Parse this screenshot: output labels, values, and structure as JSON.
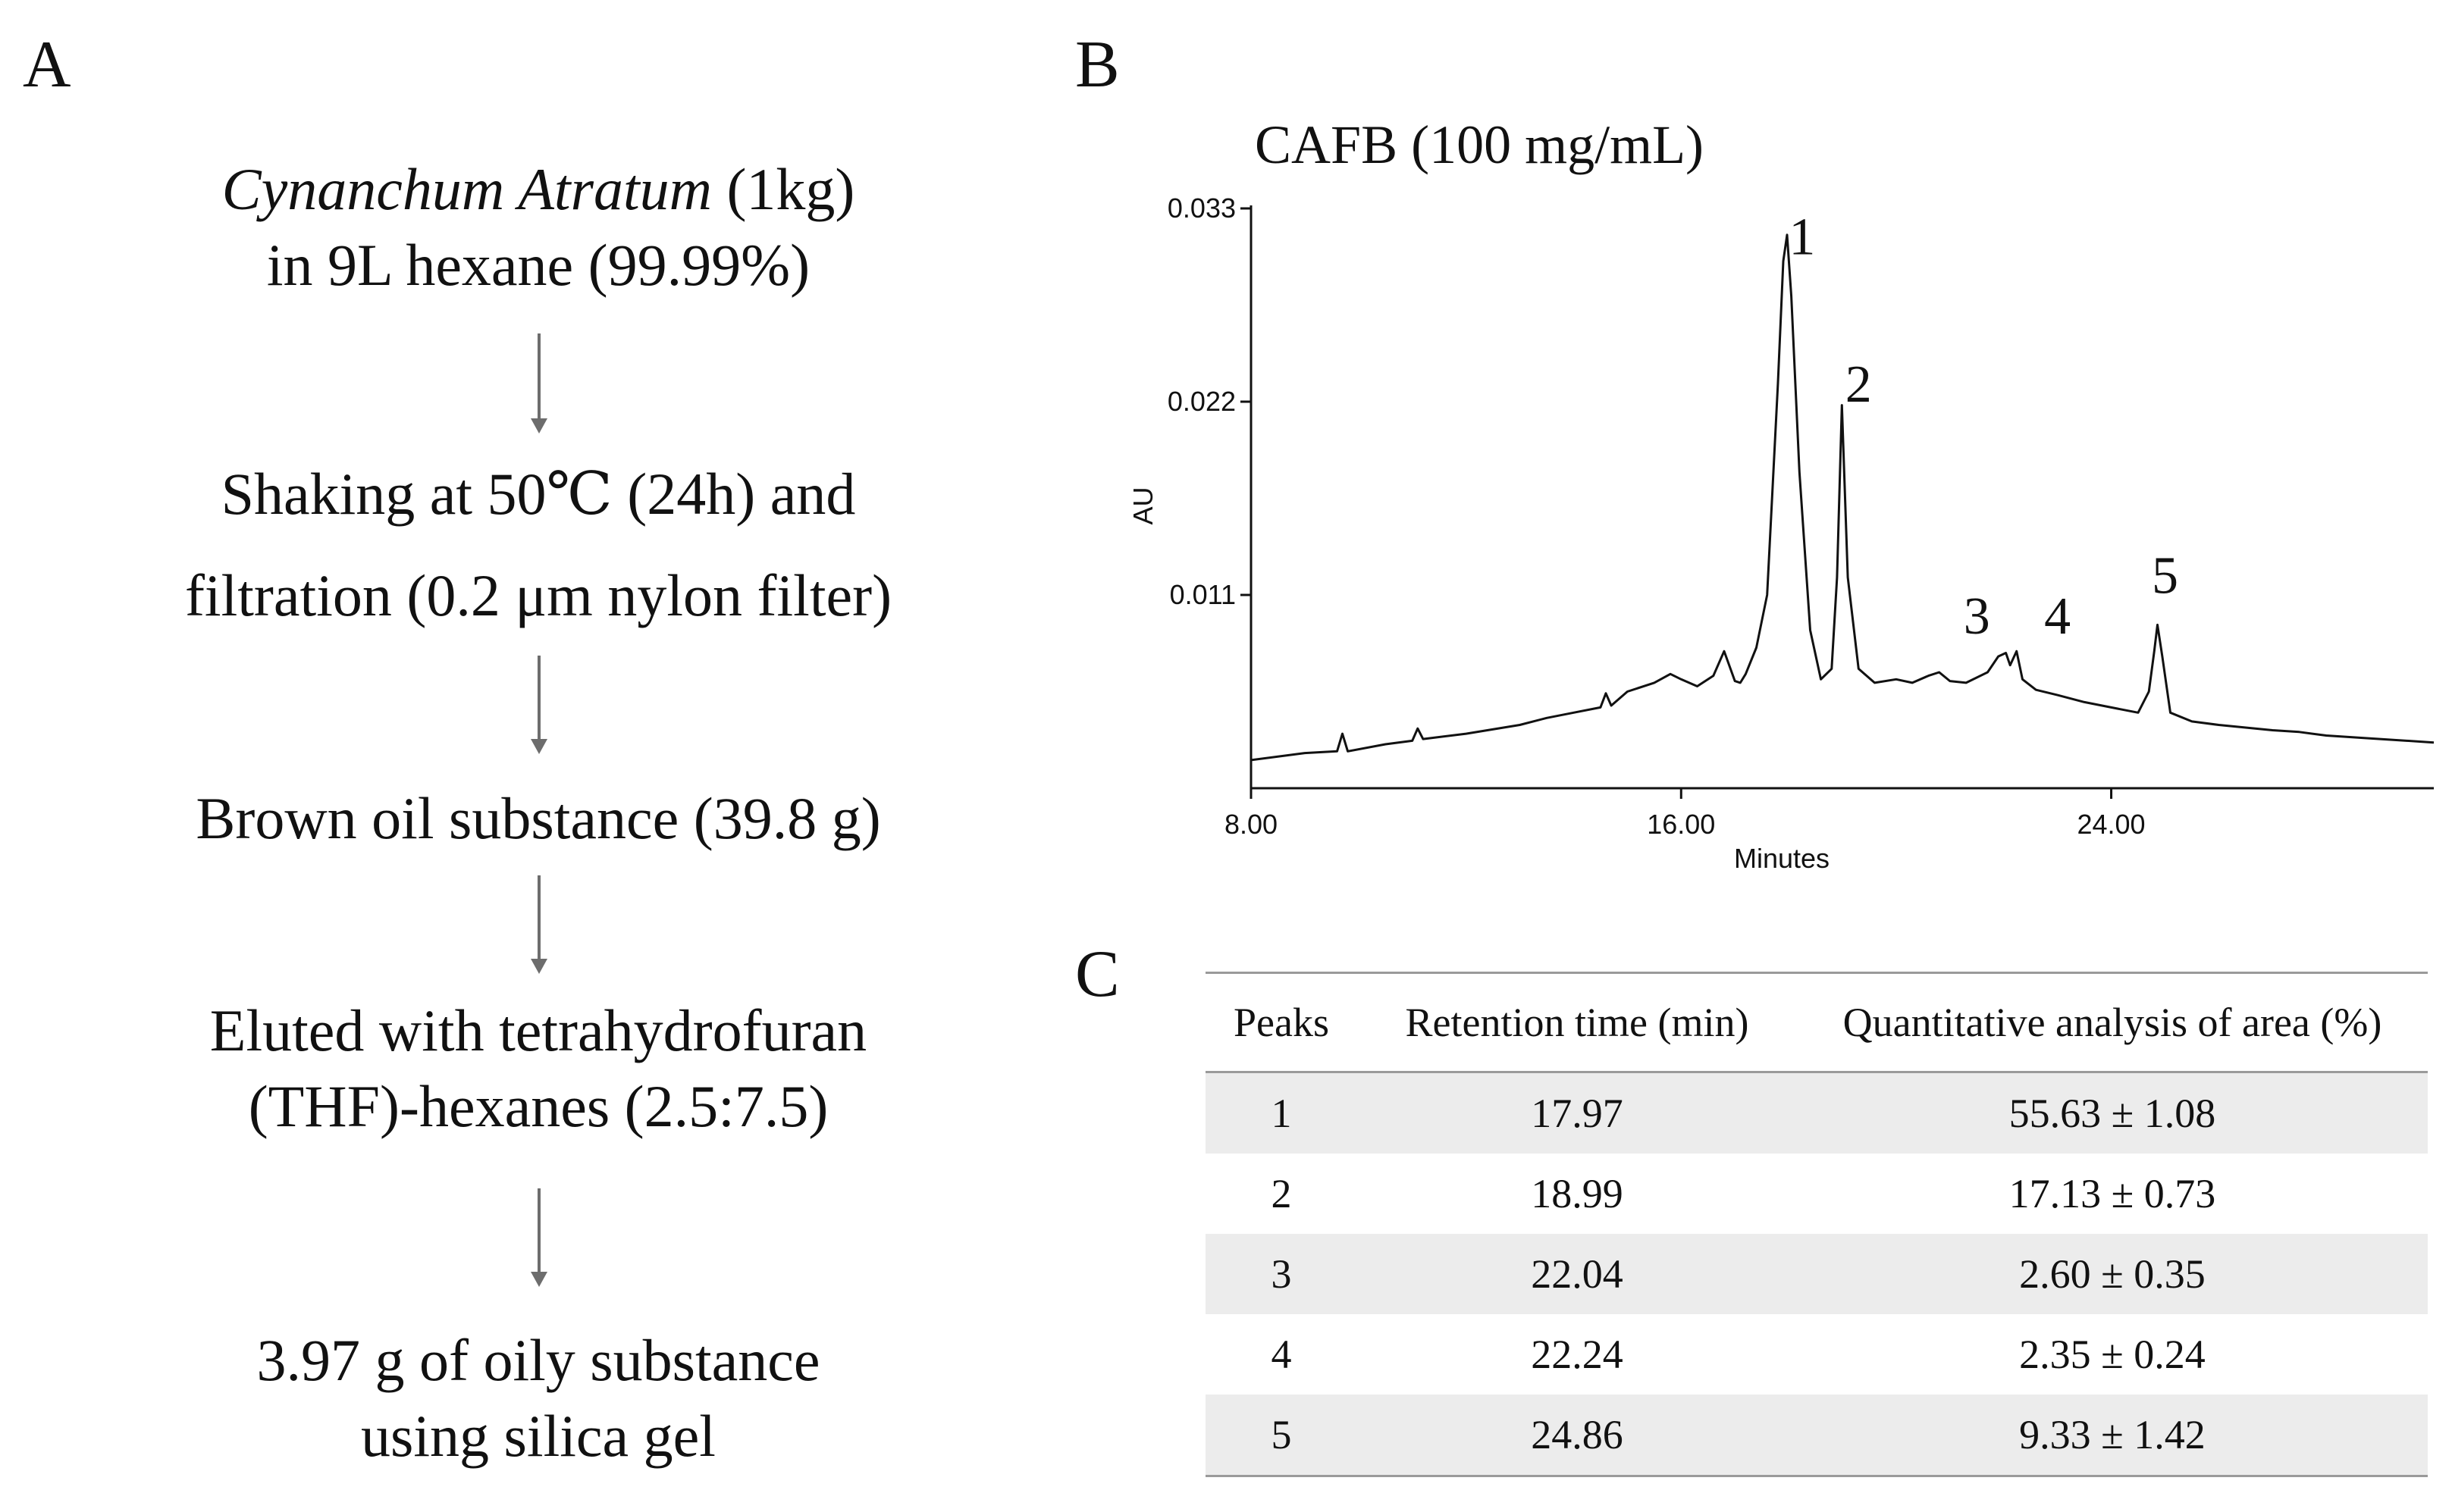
{
  "panels": {
    "a": "A",
    "b": "B",
    "c": "C"
  },
  "flowchart": {
    "step1": {
      "italic": "Cynanchum Atratum",
      "rest": " (1kg)",
      "line2": "in 9L hexane (99.99%)"
    },
    "step2": {
      "line1": "Shaking at 50℃ (24h) and",
      "line2": "filtration (0.2 μm nylon filter)"
    },
    "step3": {
      "line1": "Brown oil substance (39.8 g)"
    },
    "step4": {
      "line1": "Eluted with tetrahydrofuran",
      "line2": "(THF)-hexanes (2.5:7.5)"
    },
    "step5": {
      "line1": "3.97 g of oily substance",
      "line2": "using silica gel"
    }
  },
  "chart_data": {
    "type": "line",
    "title": "CAFB (100 mg/mL)",
    "xlabel": "Minutes",
    "ylabel": "AU",
    "xlim": [
      8.0,
      30.0
    ],
    "ylim": [
      0.0,
      0.033
    ],
    "xticks": [
      "8.00",
      "16.00",
      "24.00"
    ],
    "xtick_values": [
      8.0,
      16.0,
      24.0
    ],
    "yticks": [
      "0.011",
      "0.022",
      "0.033"
    ],
    "ytick_values": [
      0.011,
      0.022,
      0.033
    ],
    "series": [
      {
        "name": "CAFB",
        "x": [
          8.0,
          9.0,
          9.6,
          9.7,
          9.8,
          10.5,
          11.0,
          11.1,
          11.2,
          12.0,
          13.0,
          13.5,
          14.0,
          14.5,
          14.6,
          14.7,
          15.0,
          15.5,
          15.8,
          16.0,
          16.3,
          16.6,
          16.8,
          17.0,
          17.1,
          17.2,
          17.4,
          17.6,
          17.8,
          17.9,
          17.97,
          18.05,
          18.2,
          18.4,
          18.6,
          18.8,
          18.9,
          18.99,
          19.1,
          19.3,
          19.6,
          20.0,
          20.3,
          20.6,
          20.8,
          21.0,
          21.3,
          21.7,
          21.9,
          22.04,
          22.12,
          22.24,
          22.35,
          22.6,
          23.0,
          23.5,
          24.0,
          24.5,
          24.7,
          24.8,
          24.86,
          24.95,
          25.1,
          25.5,
          26.0,
          27.0,
          27.5,
          28.0,
          29.0,
          30.0
        ],
        "values": [
          0.0016,
          0.002,
          0.0021,
          0.0031,
          0.0021,
          0.0025,
          0.0027,
          0.0034,
          0.0028,
          0.0031,
          0.0036,
          0.004,
          0.0043,
          0.0046,
          0.0054,
          0.0047,
          0.0055,
          0.006,
          0.0065,
          0.0062,
          0.0058,
          0.0064,
          0.0078,
          0.0061,
          0.006,
          0.0065,
          0.008,
          0.011,
          0.023,
          0.03,
          0.0315,
          0.028,
          0.018,
          0.009,
          0.0062,
          0.0068,
          0.012,
          0.0218,
          0.012,
          0.0068,
          0.006,
          0.0062,
          0.006,
          0.0064,
          0.0066,
          0.0061,
          0.006,
          0.0066,
          0.0075,
          0.0077,
          0.007,
          0.0078,
          0.0062,
          0.0056,
          0.0053,
          0.0049,
          0.0046,
          0.0043,
          0.0055,
          0.0078,
          0.0093,
          0.0075,
          0.0043,
          0.0038,
          0.0036,
          0.0033,
          0.0032,
          0.003,
          0.0028,
          0.0026
        ]
      }
    ],
    "annotations": [
      {
        "text": "1",
        "x": 18.25,
        "y": 0.0304
      },
      {
        "text": "2",
        "x": 19.3,
        "y": 0.022
      },
      {
        "text": "3",
        "x": 21.5,
        "y": 0.0088
      },
      {
        "text": "4",
        "x": 23.0,
        "y": 0.0088
      },
      {
        "text": "5",
        "x": 25.0,
        "y": 0.0111
      }
    ]
  },
  "table": {
    "headers": [
      "Peaks",
      "Retention time (min)",
      "Quantitative analysis of area (%)"
    ],
    "rows": [
      [
        "1",
        "17.97",
        "55.63 ± 1.08"
      ],
      [
        "2",
        "18.99",
        "17.13 ± 0.73"
      ],
      [
        "3",
        "22.04",
        "2.60 ± 0.35"
      ],
      [
        "4",
        "22.24",
        "2.35 ± 0.24"
      ],
      [
        "5",
        "24.86",
        "9.33 ± 1.42"
      ]
    ]
  }
}
